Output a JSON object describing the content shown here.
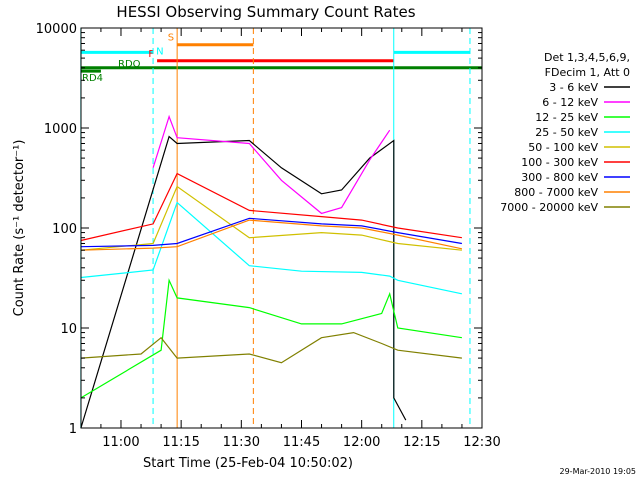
{
  "chart_data": {
    "type": "line",
    "title": "HESSI Observing Summary Count Rates",
    "xlabel": "Start Time (25-Feb-04 10:50:02)",
    "ylabel": "Count Rate (s⁻¹ detector⁻¹)",
    "y_scale": "log",
    "ylim": [
      1,
      10000
    ],
    "xlim": [
      "10:50:02",
      "12:30:00"
    ],
    "x_tick_labels": [
      "11:00",
      "11:15",
      "11:30",
      "11:45",
      "12:00",
      "12:15",
      "12:30"
    ],
    "y_tick_labels": [
      "1",
      "10",
      "100",
      "1000",
      "10000"
    ],
    "legend_header": [
      "Det 1,3,4,5,6,9,",
      "FDecim 1, Att 0"
    ],
    "legend_position": "right",
    "timestamp": "29-Mar-2010 19:05",
    "series": [
      {
        "name": "3 - 6 keV",
        "color": "#000000",
        "points": [
          [
            "10:50",
            0
          ],
          [
            "11:12",
            820
          ],
          [
            "11:14",
            700
          ],
          [
            "11:32",
            750
          ],
          [
            "11:40",
            400
          ],
          [
            "11:50",
            220
          ],
          [
            "11:55",
            240
          ],
          [
            "12:02",
            500
          ],
          [
            "12:08",
            750
          ],
          [
            "12:08",
            2
          ],
          [
            "12:11",
            1.2
          ]
        ]
      },
      {
        "name": "6 - 12 keV",
        "color": "#ff00ff",
        "points": [
          [
            "11:08",
            400
          ],
          [
            "11:12",
            1300
          ],
          [
            "11:14",
            800
          ],
          [
            "11:32",
            700
          ],
          [
            "11:40",
            300
          ],
          [
            "11:50",
            140
          ],
          [
            "11:55",
            160
          ],
          [
            "12:02",
            480
          ],
          [
            "12:07",
            950
          ]
        ]
      },
      {
        "name": "12 - 25 keV",
        "color": "#00ff00",
        "points": [
          [
            "10:50",
            2
          ],
          [
            "11:10",
            6
          ],
          [
            "11:12",
            30
          ],
          [
            "11:14",
            20
          ],
          [
            "11:32",
            16
          ],
          [
            "11:45",
            11
          ],
          [
            "11:55",
            11
          ],
          [
            "12:05",
            14
          ],
          [
            "12:07",
            22
          ],
          [
            "12:09",
            10
          ],
          [
            "12:25",
            8
          ]
        ]
      },
      {
        "name": "25 - 50 keV",
        "color": "#00ffff",
        "points": [
          [
            "10:50",
            32
          ],
          [
            "11:08",
            38
          ],
          [
            "11:14",
            180
          ],
          [
            "11:32",
            42
          ],
          [
            "11:45",
            37
          ],
          [
            "12:00",
            36
          ],
          [
            "12:07",
            33
          ],
          [
            "12:09",
            30
          ],
          [
            "12:25",
            22
          ]
        ]
      },
      {
        "name": "50 - 100 keV",
        "color": "#d0c000",
        "points": [
          [
            "10:50",
            60
          ],
          [
            "11:08",
            70
          ],
          [
            "11:14",
            260
          ],
          [
            "11:32",
            80
          ],
          [
            "11:50",
            90
          ],
          [
            "12:00",
            85
          ],
          [
            "12:09",
            70
          ],
          [
            "12:25",
            60
          ]
        ]
      },
      {
        "name": "100 - 300 keV",
        "color": "#ff0000",
        "points": [
          [
            "10:50",
            75
          ],
          [
            "11:08",
            110
          ],
          [
            "11:14",
            350
          ],
          [
            "11:32",
            150
          ],
          [
            "11:50",
            130
          ],
          [
            "12:00",
            120
          ],
          [
            "12:09",
            100
          ],
          [
            "12:25",
            80
          ]
        ]
      },
      {
        "name": "300 - 800 keV",
        "color": "#0000ff",
        "points": [
          [
            "10:50",
            65
          ],
          [
            "11:08",
            67
          ],
          [
            "11:14",
            70
          ],
          [
            "11:32",
            125
          ],
          [
            "11:50",
            110
          ],
          [
            "12:00",
            105
          ],
          [
            "12:09",
            90
          ],
          [
            "12:25",
            70
          ]
        ]
      },
      {
        "name": "800 - 7000 keV",
        "color": "#ff8000",
        "points": [
          [
            "10:50",
            60
          ],
          [
            "11:08",
            63
          ],
          [
            "11:14",
            65
          ],
          [
            "11:32",
            120
          ],
          [
            "11:50",
            105
          ],
          [
            "12:00",
            100
          ],
          [
            "12:09",
            85
          ],
          [
            "12:25",
            62
          ]
        ]
      },
      {
        "name": "7000 - 20000 keV",
        "color": "#808000",
        "points": [
          [
            "10:50",
            5
          ],
          [
            "11:05",
            5.5
          ],
          [
            "11:10",
            8
          ],
          [
            "11:14",
            5
          ],
          [
            "11:32",
            5.5
          ],
          [
            "11:40",
            4.5
          ],
          [
            "11:50",
            8
          ],
          [
            "11:58",
            9
          ],
          [
            "12:05",
            7
          ],
          [
            "12:09",
            6
          ],
          [
            "12:25",
            5
          ]
        ]
      }
    ],
    "annotations": {
      "flags": [
        {
          "label": "N",
          "color": "#00ffff",
          "level": 5700,
          "segments": [
            [
              "10:50",
              "11:08"
            ],
            [
              "12:08",
              "12:27"
            ]
          ]
        },
        {
          "label": "S",
          "color": "#ff8000",
          "level": 6800,
          "segments": [
            [
              "11:14",
              "11:33"
            ]
          ]
        },
        {
          "label": "F",
          "color": "#ff0000",
          "level": 4700,
          "segments": [
            [
              "11:09",
              "12:08"
            ]
          ]
        },
        {
          "label": "RDO",
          "color": "#008000",
          "level": 4000,
          "segments": [
            [
              "10:50",
              "12:30"
            ]
          ]
        },
        {
          "label": "RD4",
          "color": "#008000",
          "level": 3700,
          "segments": [
            [
              "10:50",
              "10:55"
            ]
          ]
        }
      ],
      "vertical_lines": [
        {
          "time": "10:50",
          "color": "#00ffff",
          "style": "solid"
        },
        {
          "time": "11:08",
          "color": "#00ffff",
          "style": "dashed"
        },
        {
          "time": "11:14",
          "color": "#ff8000",
          "style": "solid"
        },
        {
          "time": "11:33",
          "color": "#ff8000",
          "style": "dashed"
        },
        {
          "time": "12:08",
          "color": "#00ffff",
          "style": "solid"
        },
        {
          "time": "12:27",
          "color": "#00ffff",
          "style": "dashed"
        }
      ]
    }
  }
}
